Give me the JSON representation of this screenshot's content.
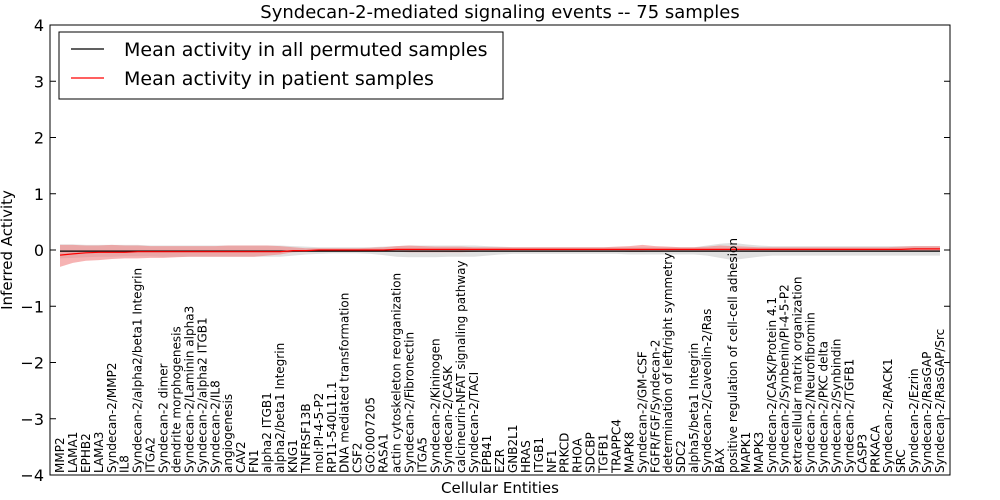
{
  "chart_data": {
    "type": "line",
    "title": "Syndecan-2-mediated signaling events -- 75 samples",
    "xlabel": "Cellular Entities",
    "ylabel": "Inferred Activity",
    "ylim": [
      -4,
      4
    ],
    "yticks": [
      -4,
      -3,
      -2,
      -1,
      0,
      1,
      2,
      3,
      4
    ],
    "ytick_labels": [
      "−4",
      "−3",
      "−2",
      "−1",
      "0",
      "1",
      "2",
      "3",
      "4"
    ],
    "legend_position": "top-left",
    "categories": [
      "MMP2",
      "LAMA1",
      "EPHB2",
      "LAMA3",
      "Syndecan-2/MMP2",
      "IL8",
      "Syndecan-2/alpha2/beta1 Integrin",
      "ITGA2",
      "Syndecan-2 dimer",
      "dendrite morphogenesis",
      "Syndecan-2/Laminin alpha3",
      "Syndecan-2/alpha2 ITGB1",
      "Syndecan-2/IL8",
      "angiogenesis",
      "CAV2",
      "FN1",
      "alpha2 ITGB1",
      "alpha2/beta1 Integrin",
      "KNG1",
      "TNFRSF13B",
      "mol:PI-4-5-P2",
      "RP11-540L11.1",
      "DNA mediated transformation",
      "CSF2",
      "GO:0007205",
      "RASA1",
      "actin cytoskeleton reorganization",
      "Syndecan-2/Fibronectin",
      "ITGA5",
      "Syndecan-2/Kininogen",
      "Syndecan-2/CASK",
      "calcineurin-NFAT signaling pathway",
      "Syndecan-2/TACI",
      "EPB41",
      "EZR",
      "GNB2L1",
      "HRAS",
      "ITGB1",
      "NF1",
      "PRKCD",
      "RHOA",
      "SDCBP",
      "TGFB1",
      "TRAPPC4",
      "MAPK8",
      "Syndecan-2/GM-CSF",
      "FGFR/FGF/Syndecan-2",
      "determination of left/right symmetry",
      "SDC2",
      "alpha5/beta1 Integrin",
      "Syndecan-2/Caveolin-2/Ras",
      "BAX",
      "positive regulation of cell-cell adhesion",
      "MAPK1",
      "MAPK3",
      "Syndecan-2/CASK/Protein 4.1",
      "Syndecan-2/Synbenin/PI-4-5-P2",
      "extracellular matrix organization",
      "Syndecan-2/Neurofibromin",
      "Syndecan-2/PKC delta",
      "Syndecan-2/Synbindin",
      "Syndecan-2/TGFB1",
      "CASP3",
      "PRKACA",
      "Syndecan-2/RACK1",
      "SRC",
      "Syndecan-2/Ezrin",
      "Syndecan-2/RasGAP",
      "Syndecan-2/RasGAP/Src"
    ],
    "series": [
      {
        "name": "Mean activity in all permuted samples",
        "color": "#000000",
        "band_color": "#bbbbbb",
        "values": [
          -0.02,
          -0.02,
          -0.02,
          -0.02,
          -0.02,
          -0.02,
          -0.02,
          -0.02,
          -0.02,
          -0.02,
          -0.02,
          -0.02,
          -0.02,
          -0.02,
          -0.02,
          -0.02,
          -0.02,
          -0.02,
          -0.02,
          -0.02,
          -0.02,
          -0.02,
          -0.02,
          -0.02,
          -0.02,
          -0.02,
          -0.02,
          -0.02,
          -0.02,
          -0.02,
          -0.02,
          -0.02,
          -0.02,
          -0.02,
          -0.02,
          -0.02,
          -0.02,
          -0.02,
          -0.02,
          -0.02,
          -0.02,
          -0.02,
          -0.02,
          -0.02,
          -0.02,
          -0.02,
          -0.02,
          -0.02,
          -0.02,
          -0.02,
          -0.02,
          -0.02,
          -0.02,
          -0.02,
          -0.02,
          -0.02,
          -0.02,
          -0.02,
          -0.02,
          -0.02,
          -0.02,
          -0.02,
          -0.02,
          -0.02,
          -0.02,
          -0.02,
          -0.02,
          -0.02,
          -0.02
        ],
        "lower": [
          -0.15,
          -0.14,
          -0.13,
          -0.12,
          -0.12,
          -0.11,
          -0.11,
          -0.11,
          -0.12,
          -0.12,
          -0.12,
          -0.12,
          -0.12,
          -0.12,
          -0.12,
          -0.12,
          -0.12,
          -0.12,
          -0.1,
          -0.08,
          -0.07,
          -0.06,
          -0.06,
          -0.06,
          -0.07,
          -0.09,
          -0.12,
          -0.13,
          -0.13,
          -0.13,
          -0.12,
          -0.12,
          -0.12,
          -0.1,
          -0.08,
          -0.07,
          -0.07,
          -0.07,
          -0.07,
          -0.07,
          -0.07,
          -0.07,
          -0.07,
          -0.07,
          -0.08,
          -0.08,
          -0.08,
          -0.08,
          -0.08,
          -0.08,
          -0.1,
          -0.14,
          -0.18,
          -0.15,
          -0.12,
          -0.1,
          -0.1,
          -0.1,
          -0.1,
          -0.1,
          -0.1,
          -0.1,
          -0.1,
          -0.1,
          -0.1,
          -0.1,
          -0.1,
          -0.1,
          -0.1
        ],
        "upper": [
          0.1,
          0.1,
          0.09,
          0.09,
          0.09,
          0.09,
          0.09,
          0.08,
          0.08,
          0.08,
          0.08,
          0.08,
          0.08,
          0.08,
          0.08,
          0.08,
          0.08,
          0.08,
          0.07,
          0.06,
          0.05,
          0.05,
          0.05,
          0.05,
          0.05,
          0.06,
          0.07,
          0.08,
          0.08,
          0.08,
          0.08,
          0.08,
          0.08,
          0.07,
          0.06,
          0.05,
          0.05,
          0.05,
          0.05,
          0.05,
          0.05,
          0.05,
          0.05,
          0.05,
          0.05,
          0.05,
          0.05,
          0.05,
          0.05,
          0.05,
          0.08,
          0.11,
          0.13,
          0.1,
          0.08,
          0.07,
          0.07,
          0.07,
          0.07,
          0.07,
          0.07,
          0.07,
          0.07,
          0.07,
          0.07,
          0.07,
          0.07,
          0.07,
          0.07
        ]
      },
      {
        "name": "Mean activity in patient samples",
        "color": "#ff0000",
        "band_color": "#f08080",
        "values": [
          -0.09,
          -0.07,
          -0.05,
          -0.04,
          -0.04,
          -0.04,
          -0.03,
          -0.03,
          -0.03,
          -0.03,
          -0.03,
          -0.03,
          -0.03,
          -0.03,
          -0.03,
          -0.03,
          -0.03,
          -0.03,
          -0.01,
          -0.01,
          0.0,
          0.0,
          0.0,
          0.0,
          0.0,
          0.0,
          0.01,
          0.01,
          0.01,
          0.01,
          0.01,
          0.01,
          0.01,
          0.01,
          0.01,
          0.01,
          0.01,
          0.01,
          0.01,
          0.01,
          0.01,
          0.01,
          0.01,
          0.01,
          0.01,
          0.01,
          0.01,
          0.01,
          0.01,
          0.01,
          0.01,
          0.01,
          0.01,
          0.01,
          0.01,
          0.01,
          0.01,
          0.01,
          0.01,
          0.01,
          0.01,
          0.01,
          0.01,
          0.01,
          0.01,
          0.01,
          0.02,
          0.02,
          0.02
        ],
        "lower": [
          -0.3,
          -0.23,
          -0.19,
          -0.18,
          -0.16,
          -0.15,
          -0.15,
          -0.14,
          -0.14,
          -0.13,
          -0.12,
          -0.12,
          -0.12,
          -0.12,
          -0.12,
          -0.12,
          -0.1,
          -0.08,
          -0.04,
          -0.03,
          -0.02,
          -0.02,
          -0.02,
          -0.02,
          -0.02,
          -0.02,
          -0.03,
          -0.04,
          -0.04,
          -0.04,
          -0.04,
          -0.04,
          -0.03,
          -0.02,
          -0.02,
          -0.02,
          -0.02,
          -0.02,
          -0.02,
          -0.02,
          -0.02,
          -0.02,
          -0.02,
          -0.02,
          -0.03,
          -0.03,
          -0.02,
          -0.02,
          -0.02,
          -0.02,
          -0.02,
          -0.02,
          -0.02,
          -0.02,
          -0.02,
          -0.02,
          -0.02,
          -0.02,
          -0.02,
          -0.02,
          -0.02,
          -0.02,
          -0.02,
          -0.02,
          -0.02,
          -0.02,
          -0.02,
          -0.02,
          -0.02
        ],
        "upper": [
          0.09,
          0.09,
          0.08,
          0.08,
          0.09,
          0.08,
          0.08,
          0.07,
          0.07,
          0.07,
          0.07,
          0.07,
          0.07,
          0.08,
          0.08,
          0.08,
          0.08,
          0.07,
          0.05,
          0.03,
          0.03,
          0.03,
          0.03,
          0.03,
          0.04,
          0.05,
          0.07,
          0.08,
          0.07,
          0.06,
          0.06,
          0.06,
          0.05,
          0.05,
          0.05,
          0.05,
          0.05,
          0.05,
          0.05,
          0.05,
          0.05,
          0.05,
          0.05,
          0.06,
          0.07,
          0.09,
          0.07,
          0.06,
          0.05,
          0.05,
          0.06,
          0.08,
          0.07,
          0.06,
          0.05,
          0.05,
          0.05,
          0.05,
          0.05,
          0.05,
          0.05,
          0.05,
          0.05,
          0.05,
          0.05,
          0.06,
          0.07,
          0.07,
          0.07
        ]
      }
    ]
  }
}
